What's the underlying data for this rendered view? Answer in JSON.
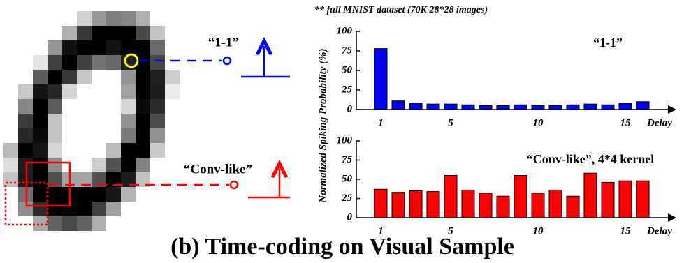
{
  "note": "** full MNIST dataset (70K 28*28 images)",
  "ylabel": "Normalized Spiking Probability (%)",
  "image_labels": [
    "“1-1”",
    "“Conv-like”"
  ],
  "caption": "(b) Time-coding on Visual Sample",
  "chart_data": [
    {
      "type": "bar",
      "annotation": "“1-1”",
      "xlabel": "Delay",
      "categories": [
        "1",
        null,
        null,
        null,
        "5",
        null,
        null,
        null,
        null,
        "10",
        null,
        null,
        null,
        null,
        "15",
        null
      ],
      "values": [
        78,
        11,
        8,
        7,
        7,
        6,
        5,
        5,
        6,
        5,
        5,
        6,
        7,
        6,
        8,
        10
      ],
      "color": "#0000ff",
      "ylim": [
        0,
        100
      ],
      "yticks": [
        0,
        25,
        50,
        75,
        100
      ]
    },
    {
      "type": "bar",
      "annotation": "“Conv-like”, 4*4 kernel",
      "xlabel": "Delay",
      "categories": [
        "1",
        null,
        null,
        null,
        "5",
        null,
        null,
        null,
        null,
        "10",
        null,
        null,
        null,
        null,
        "15",
        null
      ],
      "values": [
        37,
        33,
        35,
        34,
        55,
        36,
        32,
        28,
        55,
        32,
        36,
        28,
        58,
        46,
        48,
        48
      ],
      "color": "#ff0000",
      "ylim": [
        0,
        100
      ],
      "yticks": [
        0,
        25,
        50,
        75,
        100
      ]
    }
  ]
}
